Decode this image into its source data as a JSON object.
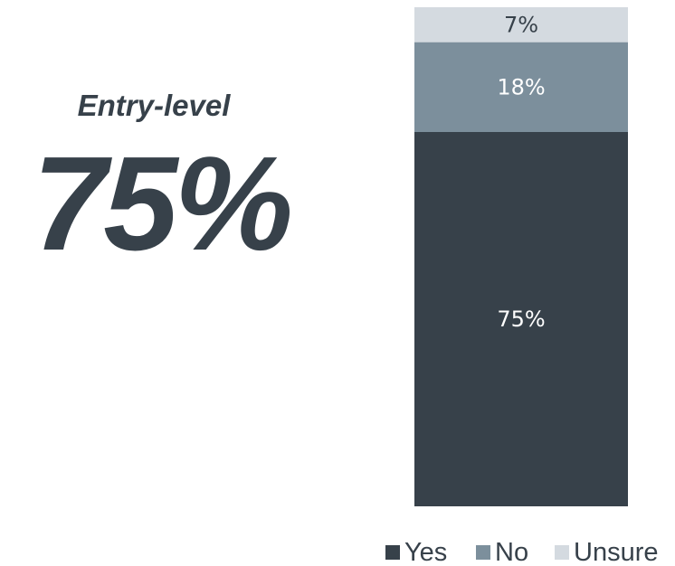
{
  "headline": {
    "subtitle": "Entry-level",
    "value": "75%"
  },
  "chart_data": {
    "type": "bar",
    "stacked": true,
    "categories": [
      ""
    ],
    "series": [
      {
        "name": "Yes",
        "values": [
          75
        ],
        "label": "75%",
        "color": "#37414a",
        "label_color": "#ffffff"
      },
      {
        "name": "No",
        "values": [
          18
        ],
        "label": "18%",
        "color": "#7c8f9c",
        "label_color": "#ffffff"
      },
      {
        "name": "Unsure",
        "values": [
          7
        ],
        "label": "7%",
        "color": "#d4dae0",
        "label_color": "#37414a"
      }
    ],
    "ylim": [
      0,
      100
    ],
    "legend": "bottom",
    "grid": false
  }
}
